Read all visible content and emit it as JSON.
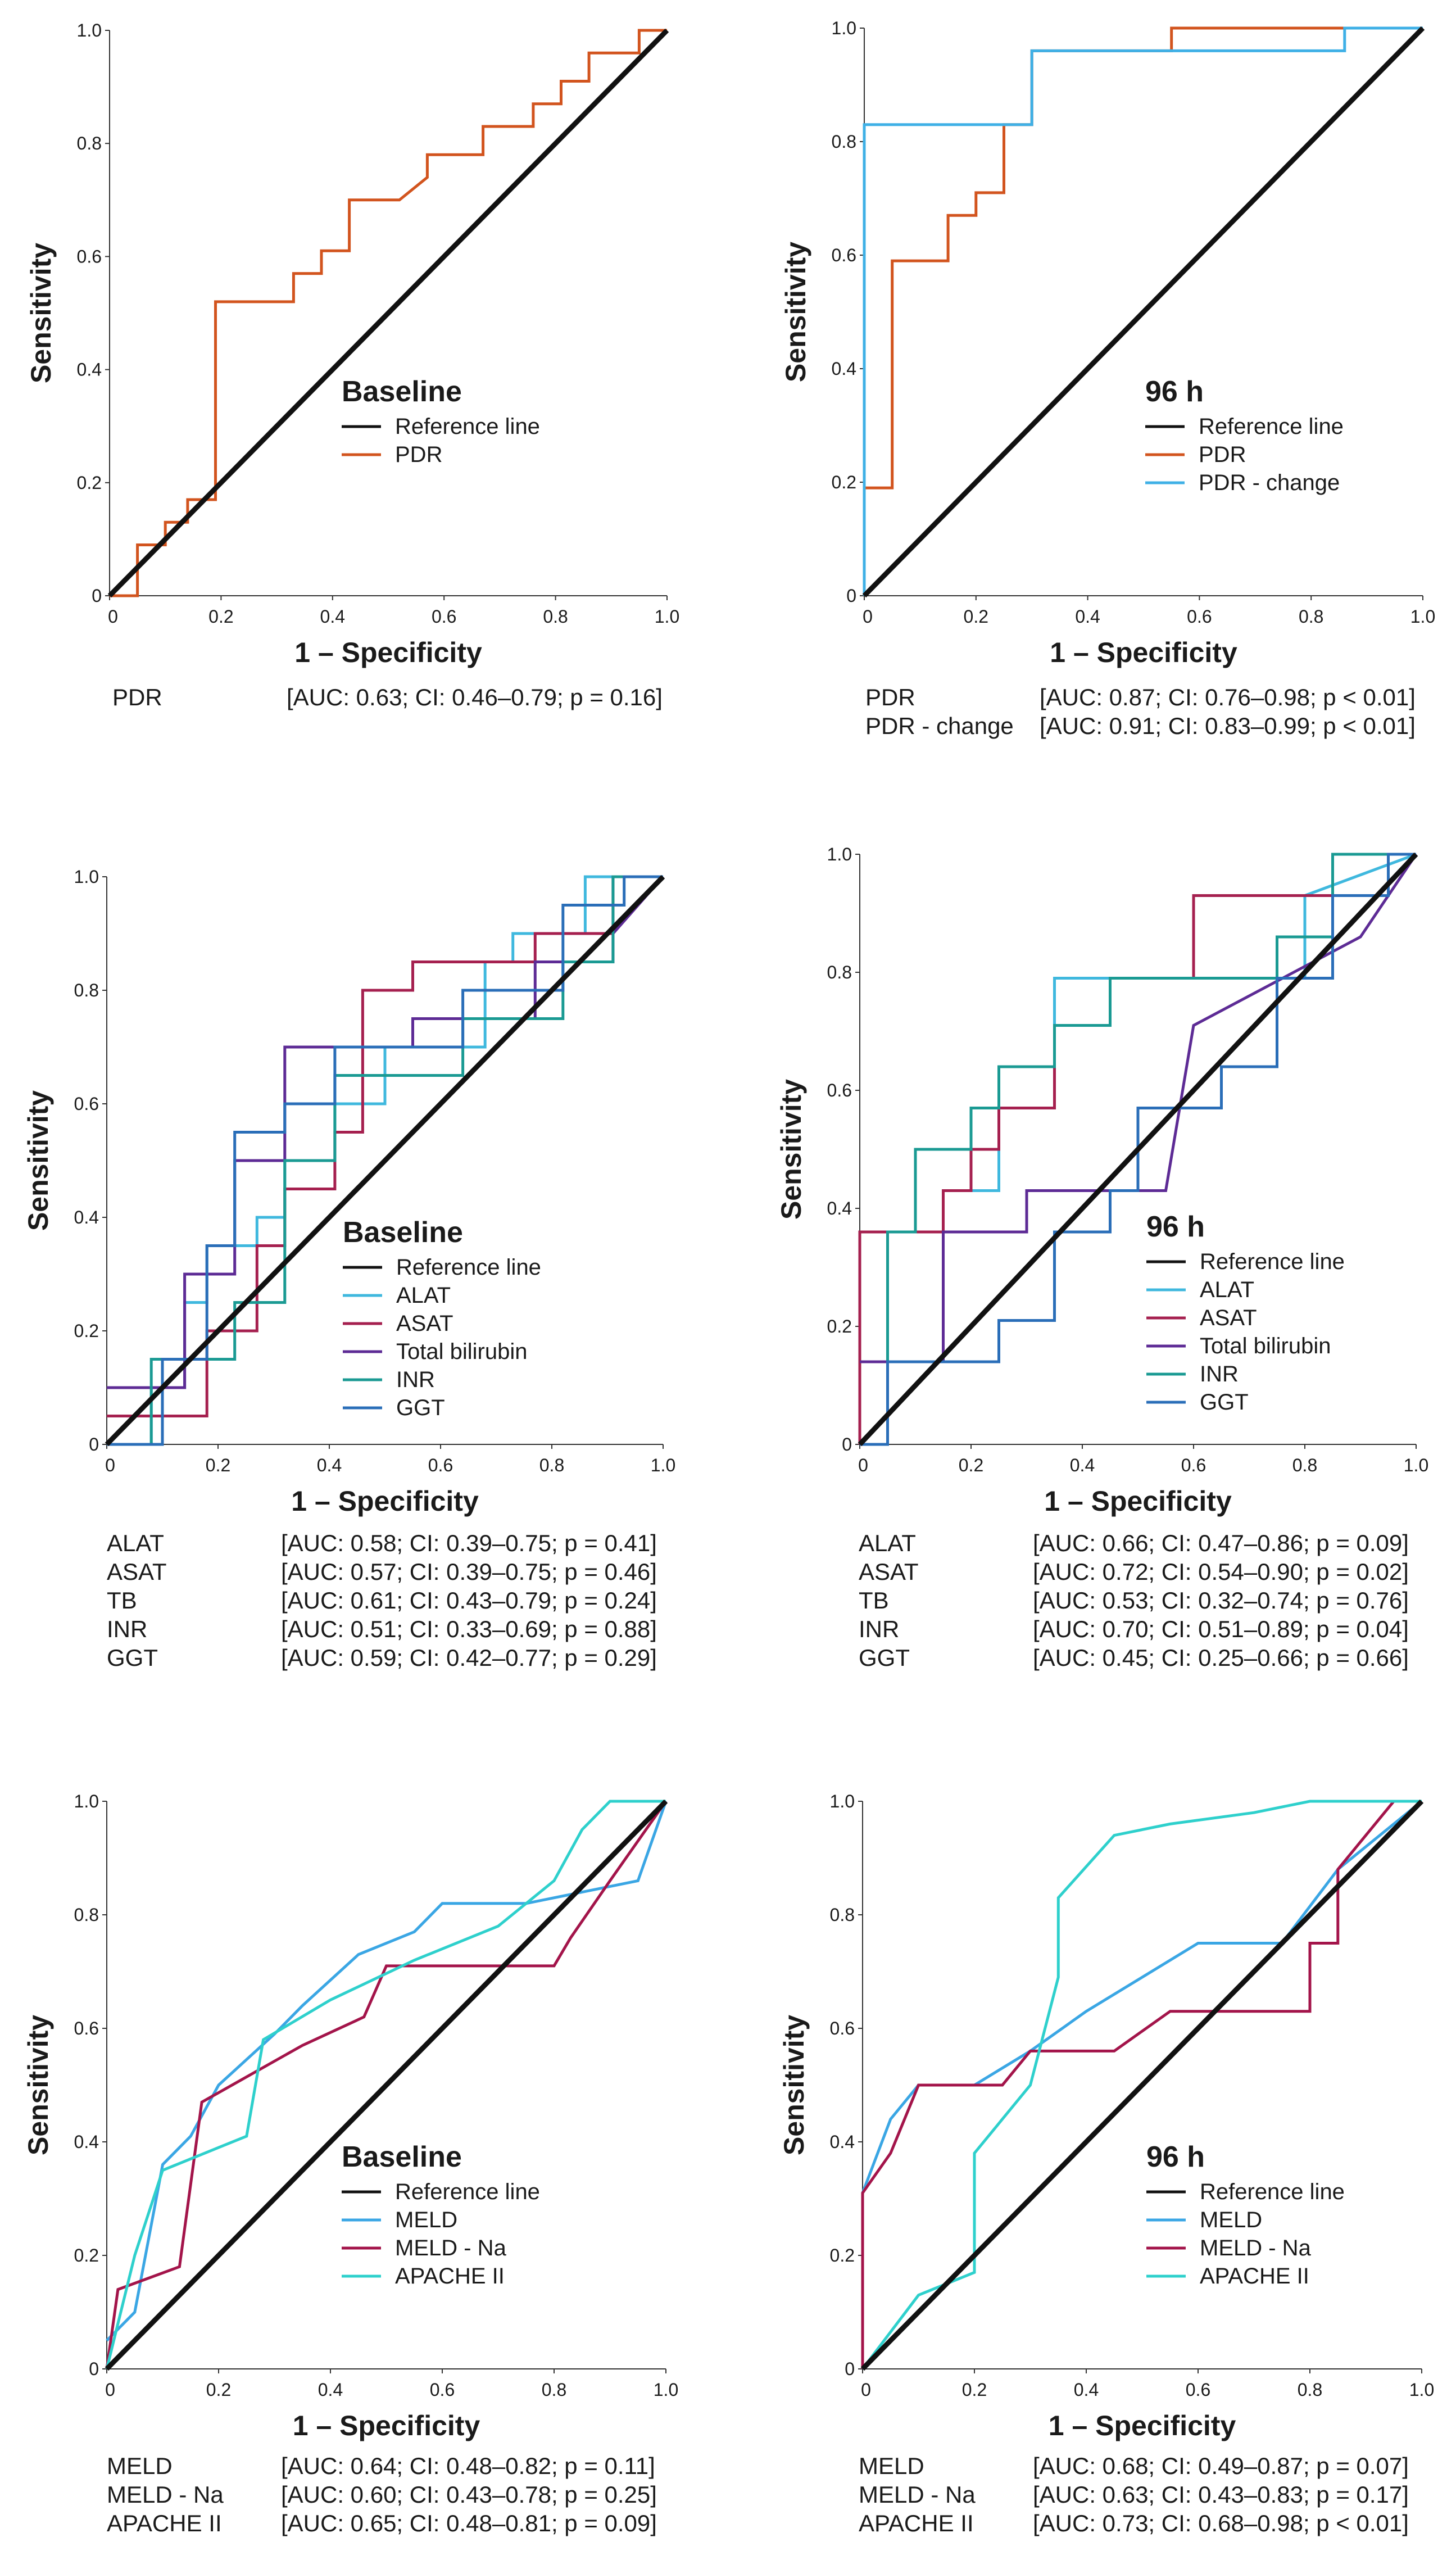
{
  "colors": {
    "reference": "#111111",
    "pdr": "#d2541e",
    "pdr_change": "#3fb0e6",
    "alat": "#3fb8de",
    "asat": "#a5204f",
    "bilirubin": "#5d2b95",
    "inr": "#1a9a93",
    "ggt": "#2a6eb8",
    "meld": "#3aa6e4",
    "meld_na": "#a3144a",
    "apache": "#2ed0cc"
  },
  "chart_data": [
    {
      "type": "line",
      "title": "Baseline",
      "xlabel": "1 – Specificity",
      "ylabel": "Sensitivity",
      "xlim": [
        0,
        1
      ],
      "ylim": [
        0,
        1
      ],
      "xticks": [
        "0",
        "0.2",
        "0.4",
        "0.6",
        "0.8",
        "1.0"
      ],
      "yticks": [
        "0",
        "0.2",
        "0.4",
        "0.6",
        "0.8",
        "1.0"
      ],
      "reference_label": "Reference line",
      "series": [
        {
          "name": "PDR",
          "color_key": "pdr",
          "stat_label": "PDR",
          "stat": "[AUC: 0.63; CI: 0.46–0.79; p = 0.16]",
          "x": [
            0,
            0.05,
            0.05,
            0.1,
            0.1,
            0.14,
            0.14,
            0.19,
            0.19,
            0.33,
            0.33,
            0.38,
            0.38,
            0.43,
            0.43,
            0.52,
            0.57,
            0.57,
            0.67,
            0.67,
            0.76,
            0.76,
            0.81,
            0.81,
            0.86,
            0.86,
            0.95,
            0.95,
            1.0
          ],
          "y": [
            0,
            0,
            0.09,
            0.09,
            0.13,
            0.13,
            0.17,
            0.17,
            0.52,
            0.52,
            0.57,
            0.57,
            0.61,
            0.61,
            0.7,
            0.7,
            0.74,
            0.78,
            0.78,
            0.83,
            0.83,
            0.87,
            0.87,
            0.91,
            0.91,
            0.96,
            0.96,
            1.0,
            1.0
          ]
        }
      ]
    },
    {
      "type": "line",
      "title": "96 h",
      "xlabel": "1 – Specificity",
      "ylabel": "Sensitivity",
      "xlim": [
        0,
        1
      ],
      "ylim": [
        0,
        1
      ],
      "xticks": [
        "0",
        "0.2",
        "0.4",
        "0.6",
        "0.8",
        "1.0"
      ],
      "yticks": [
        "0",
        "0.2",
        "0.4",
        "0.6",
        "0.8",
        "1.0"
      ],
      "reference_label": "Reference line",
      "series": [
        {
          "name": "PDR",
          "color_key": "pdr",
          "stat_label": "PDR",
          "stat": "[AUC: 0.87; CI: 0.76–0.98; p < 0.01]",
          "x": [
            0,
            0.05,
            0.05,
            0.15,
            0.15,
            0.2,
            0.2,
            0.25,
            0.25,
            0.3,
            0.3,
            0.55,
            0.55,
            0.85,
            0.85,
            1.0
          ],
          "y": [
            0.19,
            0.19,
            0.59,
            0.59,
            0.67,
            0.67,
            0.71,
            0.71,
            0.83,
            0.83,
            0.96,
            0.96,
            1.0,
            1.0,
            1.0,
            1.0
          ]
        },
        {
          "name": "PDR - change",
          "color_key": "pdr_change",
          "stat_label": "PDR - change",
          "stat": "[AUC: 0.91; CI: 0.83–0.99; p < 0.01]",
          "x": [
            0,
            0,
            0.3,
            0.3,
            0.86,
            0.86,
            1.0
          ],
          "y": [
            0,
            0.83,
            0.83,
            0.96,
            0.96,
            1.0,
            1.0
          ]
        }
      ]
    },
    {
      "type": "line",
      "title": "Baseline",
      "xlabel": "1 – Specificity",
      "ylabel": "Sensitivity",
      "xlim": [
        0,
        1
      ],
      "ylim": [
        0,
        1
      ],
      "xticks": [
        "0",
        "0.2",
        "0.4",
        "0.6",
        "0.8",
        "1.0"
      ],
      "yticks": [
        "0",
        "0.2",
        "0.4",
        "0.6",
        "0.8",
        "1.0"
      ],
      "reference_label": "Reference line",
      "series": [
        {
          "name": "ALAT",
          "color_key": "alat",
          "stat_label": "ALAT",
          "stat": "[AUC: 0.58; CI: 0.39–0.75; p = 0.41]",
          "x": [
            0,
            0.08,
            0.08,
            0.14,
            0.14,
            0.18,
            0.18,
            0.27,
            0.27,
            0.32,
            0.32,
            0.41,
            0.41,
            0.5,
            0.5,
            0.68,
            0.68,
            0.73,
            0.73,
            0.86,
            0.86,
            1.0
          ],
          "y": [
            0,
            0,
            0.1,
            0.1,
            0.25,
            0.25,
            0.35,
            0.35,
            0.4,
            0.4,
            0.5,
            0.5,
            0.6,
            0.6,
            0.7,
            0.7,
            0.85,
            0.85,
            0.9,
            0.9,
            1.0,
            1.0
          ]
        },
        {
          "name": "ASAT",
          "color_key": "asat",
          "stat_label": "ASAT",
          "stat": "[AUC: 0.57; CI: 0.39–0.75; p = 0.46]",
          "x": [
            0,
            0.18,
            0.18,
            0.27,
            0.27,
            0.32,
            0.32,
            0.41,
            0.41,
            0.46,
            0.46,
            0.55,
            0.55,
            0.77,
            0.77,
            0.91,
            0.91,
            1.0
          ],
          "y": [
            0.05,
            0.05,
            0.2,
            0.2,
            0.35,
            0.35,
            0.45,
            0.45,
            0.55,
            0.55,
            0.8,
            0.8,
            0.85,
            0.85,
            0.9,
            0.9,
            1.0,
            1.0
          ]
        },
        {
          "name": "Total bilirubin",
          "color_key": "bilirubin",
          "stat_label": "TB",
          "stat": "[AUC: 0.61; CI: 0.43–0.79; p = 0.24]",
          "x": [
            0,
            0.14,
            0.14,
            0.23,
            0.23,
            0.32,
            0.32,
            0.55,
            0.55,
            0.77,
            0.77,
            0.91,
            0.91,
            1.0
          ],
          "y": [
            0.1,
            0.1,
            0.3,
            0.3,
            0.5,
            0.5,
            0.7,
            0.7,
            0.75,
            0.75,
            0.85,
            0.85,
            0.9,
            1.0
          ]
        },
        {
          "name": "INR",
          "color_key": "inr",
          "stat_label": "INR",
          "stat": "[AUC: 0.51; CI: 0.33–0.69; p = 0.88]",
          "x": [
            0,
            0.08,
            0.08,
            0.23,
            0.23,
            0.32,
            0.32,
            0.41,
            0.41,
            0.64,
            0.64,
            0.82,
            0.82,
            0.91,
            0.91,
            1.0
          ],
          "y": [
            0,
            0,
            0.15,
            0.15,
            0.25,
            0.25,
            0.5,
            0.5,
            0.65,
            0.65,
            0.75,
            0.75,
            0.85,
            0.85,
            1.0,
            1.0
          ]
        },
        {
          "name": "GGT",
          "color_key": "ggt",
          "stat_label": "GGT",
          "stat": "[AUC: 0.59; CI: 0.42–0.77; p = 0.29]",
          "x": [
            0,
            0.1,
            0.1,
            0.18,
            0.18,
            0.23,
            0.23,
            0.32,
            0.32,
            0.41,
            0.41,
            0.64,
            0.64,
            0.82,
            0.82,
            0.93,
            0.93,
            1.0
          ],
          "y": [
            0,
            0,
            0.15,
            0.15,
            0.35,
            0.35,
            0.55,
            0.55,
            0.6,
            0.6,
            0.7,
            0.7,
            0.8,
            0.8,
            0.95,
            0.95,
            1.0,
            1.0
          ]
        }
      ]
    },
    {
      "type": "line",
      "title": "96 h",
      "xlabel": "1 – Specificity",
      "ylabel": "Sensitivity",
      "xlim": [
        0,
        1
      ],
      "ylim": [
        0,
        1
      ],
      "xticks": [
        "0",
        "0.2",
        "0.4",
        "0.6",
        "0.8",
        "1.0"
      ],
      "yticks": [
        "0",
        "0.2",
        "0.4",
        "0.6",
        "0.8",
        "1.0"
      ],
      "reference_label": "Reference line",
      "series": [
        {
          "name": "ALAT",
          "color_key": "alat",
          "stat_label": "ALAT",
          "stat": "[AUC: 0.66; CI: 0.47–0.86; p = 0.09]",
          "x": [
            0,
            0.15,
            0.15,
            0.25,
            0.25,
            0.35,
            0.35,
            0.55,
            0.55,
            0.8,
            0.8,
            1.0
          ],
          "y": [
            0.36,
            0.36,
            0.43,
            0.43,
            0.57,
            0.57,
            0.79,
            0.79,
            0.79,
            0.79,
            0.93,
            1.0
          ]
        },
        {
          "name": "ASAT",
          "color_key": "asat",
          "stat_label": "ASAT",
          "stat": "[AUC: 0.72; CI: 0.54–0.90; p = 0.02]",
          "x": [
            0,
            0,
            0.15,
            0.15,
            0.2,
            0.2,
            0.25,
            0.25,
            0.35,
            0.35,
            0.45,
            0.45,
            0.6,
            0.6,
            0.95,
            0.95,
            1.0
          ],
          "y": [
            0,
            0.36,
            0.36,
            0.43,
            0.43,
            0.5,
            0.5,
            0.57,
            0.57,
            0.71,
            0.71,
            0.79,
            0.79,
            0.93,
            0.93,
            1.0,
            1.0
          ]
        },
        {
          "name": "Total bilirubin",
          "color_key": "bilirubin",
          "stat_label": "TB",
          "stat": "[AUC: 0.53; CI: 0.32–0.74; p = 0.76]",
          "x": [
            0,
            0.15,
            0.15,
            0.3,
            0.3,
            0.55,
            0.55,
            0.6,
            0.6,
            0.9,
            0.9,
            1.0
          ],
          "y": [
            0.14,
            0.14,
            0.36,
            0.36,
            0.43,
            0.43,
            0.43,
            0.71,
            0.71,
            0.86,
            0.86,
            1.0
          ]
        },
        {
          "name": "INR",
          "color_key": "inr",
          "stat_label": "INR",
          "stat": "[AUC: 0.70; CI: 0.51–0.89; p = 0.04]",
          "x": [
            0,
            0.05,
            0.05,
            0.1,
            0.1,
            0.2,
            0.2,
            0.25,
            0.25,
            0.35,
            0.35,
            0.45,
            0.45,
            0.75,
            0.75,
            0.85,
            0.85,
            1.0
          ],
          "y": [
            0,
            0,
            0.36,
            0.36,
            0.5,
            0.5,
            0.57,
            0.57,
            0.64,
            0.64,
            0.71,
            0.71,
            0.79,
            0.79,
            0.86,
            0.86,
            1.0,
            1.0
          ]
        },
        {
          "name": "GGT",
          "color_key": "ggt",
          "stat_label": "GGT",
          "stat": "[AUC: 0.45; CI: 0.25–0.66; p = 0.66]",
          "x": [
            0,
            0.05,
            0.05,
            0.25,
            0.25,
            0.35,
            0.35,
            0.45,
            0.45,
            0.5,
            0.5,
            0.65,
            0.65,
            0.75,
            0.75,
            0.85,
            0.85,
            0.95,
            0.95,
            1.0
          ],
          "y": [
            0,
            0,
            0.14,
            0.14,
            0.21,
            0.21,
            0.36,
            0.36,
            0.43,
            0.43,
            0.57,
            0.57,
            0.64,
            0.64,
            0.79,
            0.79,
            0.93,
            0.93,
            1.0,
            1.0
          ]
        }
      ]
    },
    {
      "type": "line",
      "title": "Baseline",
      "xlabel": "1 – Specificity",
      "ylabel": "Sensitivity",
      "xlim": [
        0,
        1
      ],
      "ylim": [
        0,
        1
      ],
      "xticks": [
        "0",
        "0.2",
        "0.4",
        "0.6",
        "0.8",
        "1.0"
      ],
      "yticks": [
        "0",
        "0.2",
        "0.4",
        "0.6",
        "0.8",
        "1.0"
      ],
      "reference_label": "Reference line",
      "series": [
        {
          "name": "MELD",
          "color_key": "meld",
          "stat_label": "MELD",
          "stat": "[AUC: 0.64; CI: 0.48–0.82; p = 0.11]",
          "x": [
            0,
            0.05,
            0.1,
            0.15,
            0.2,
            0.3,
            0.35,
            0.45,
            0.55,
            0.6,
            0.75,
            0.95,
            1.0
          ],
          "y": [
            0.05,
            0.1,
            0.36,
            0.41,
            0.5,
            0.59,
            0.64,
            0.73,
            0.77,
            0.82,
            0.82,
            0.86,
            1.0
          ]
        },
        {
          "name": "MELD - Na",
          "color_key": "meld_na",
          "stat_label": "MELD - Na",
          "stat": "[AUC: 0.60; CI: 0.43–0.78; p = 0.25]",
          "x": [
            0,
            0.02,
            0.13,
            0.17,
            0.35,
            0.46,
            0.5,
            0.8,
            0.83,
            0.9,
            1.0
          ],
          "y": [
            0,
            0.14,
            0.18,
            0.47,
            0.57,
            0.62,
            0.71,
            0.71,
            0.76,
            0.86,
            1.0
          ]
        },
        {
          "name": "APACHE II",
          "color_key": "apache",
          "stat_label": "APACHE II",
          "stat": "[AUC: 0.65; CI: 0.48–0.81; p = 0.09]",
          "x": [
            0,
            0.05,
            0.1,
            0.25,
            0.28,
            0.4,
            0.55,
            0.7,
            0.8,
            0.85,
            0.9,
            1.0
          ],
          "y": [
            0,
            0.2,
            0.35,
            0.41,
            0.58,
            0.65,
            0.72,
            0.78,
            0.86,
            0.95,
            1.0,
            1.0
          ]
        }
      ]
    },
    {
      "type": "line",
      "title": "96 h",
      "xlabel": "1 – Specificity",
      "ylabel": "Sensitivity",
      "xlim": [
        0,
        1
      ],
      "ylim": [
        0,
        1
      ],
      "xticks": [
        "0",
        "0.2",
        "0.4",
        "0.6",
        "0.8",
        "1.0"
      ],
      "yticks": [
        "0",
        "0.2",
        "0.4",
        "0.6",
        "0.8",
        "1.0"
      ],
      "reference_label": "Reference line",
      "series": [
        {
          "name": "MELD",
          "color_key": "meld",
          "stat_label": "MELD",
          "stat": "[AUC: 0.68; CI: 0.49–0.87; p = 0.07]",
          "x": [
            0,
            0.05,
            0.1,
            0.2,
            0.3,
            0.4,
            0.5,
            0.6,
            0.75,
            0.85,
            1.0
          ],
          "y": [
            0.31,
            0.44,
            0.5,
            0.5,
            0.56,
            0.63,
            0.69,
            0.75,
            0.75,
            0.88,
            1.0
          ]
        },
        {
          "name": "MELD - Na",
          "color_key": "meld_na",
          "stat_label": "MELD - Na",
          "stat": "[AUC: 0.63; CI: 0.43–0.83; p = 0.17]",
          "x": [
            0,
            0,
            0.05,
            0.1,
            0.25,
            0.3,
            0.45,
            0.55,
            0.8,
            0.8,
            0.85,
            0.85,
            0.95,
            1.0
          ],
          "y": [
            0,
            0.31,
            0.38,
            0.5,
            0.5,
            0.56,
            0.56,
            0.63,
            0.63,
            0.75,
            0.75,
            0.88,
            1.0,
            1.0
          ]
        },
        {
          "name": "APACHE II",
          "color_key": "apache",
          "stat_label": "APACHE II",
          "stat": "[AUC: 0.73; CI: 0.68–0.98; p < 0.01]",
          "x": [
            0,
            0.1,
            0.2,
            0.2,
            0.3,
            0.35,
            0.35,
            0.45,
            0.55,
            0.7,
            0.8,
            1.0
          ],
          "y": [
            0,
            0.13,
            0.17,
            0.38,
            0.5,
            0.69,
            0.83,
            0.94,
            0.96,
            0.98,
            1.0,
            1.0
          ]
        }
      ]
    }
  ]
}
